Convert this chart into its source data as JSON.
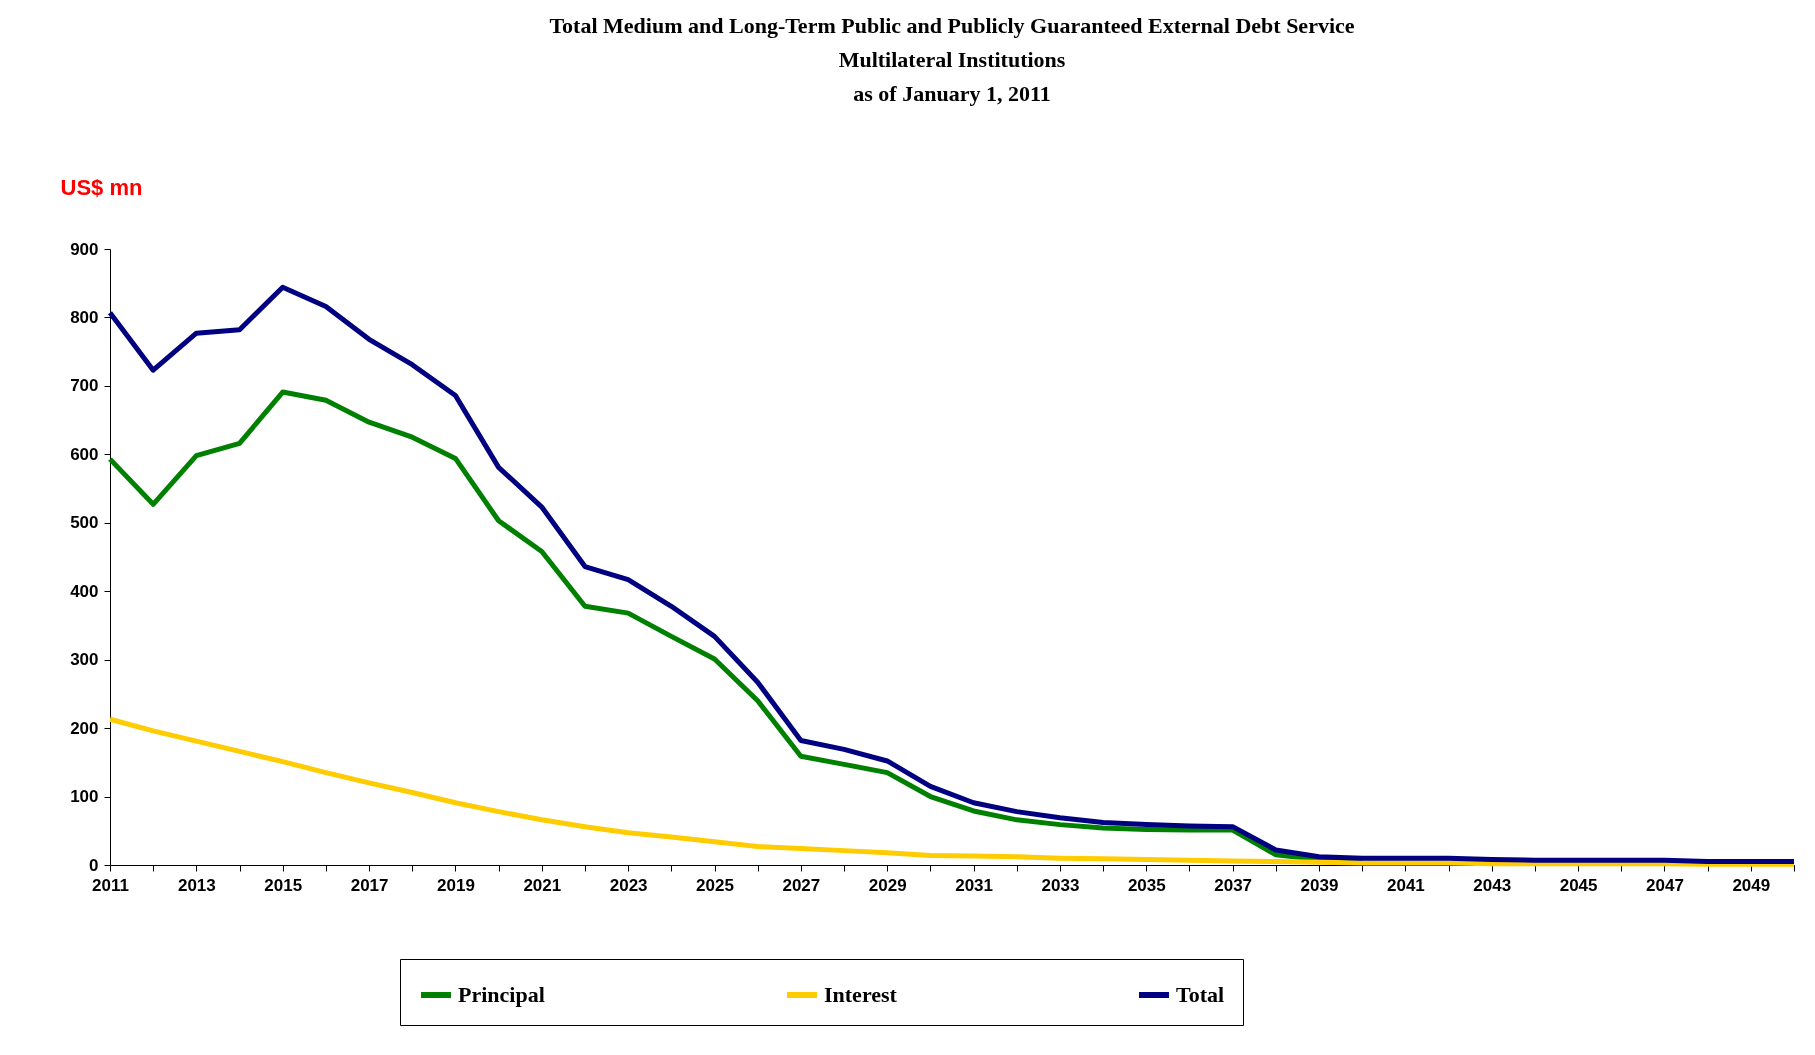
{
  "chart_data": {
    "type": "line",
    "title": "Total Medium and Long-Term Public and Publicly Guaranteed External Debt Service\nMultilateral Institutions\nas of January 1, 2011",
    "ylabel": "US$ mn",
    "categories": [
      "2011",
      null,
      "2013",
      null,
      "2015",
      null,
      "2017",
      null,
      "2019",
      null,
      "2021",
      null,
      "2023",
      null,
      "2025",
      null,
      "2027",
      null,
      "2029",
      null,
      "2031",
      null,
      "2033",
      null,
      "2035",
      null,
      "2037",
      null,
      "2039",
      null,
      "2041",
      null,
      "2043",
      null,
      "2045",
      null,
      "2047",
      null,
      "2049",
      null
    ],
    "series": [
      {
        "name": "Principal",
        "color": "#008000",
        "values": [
          593,
          527,
          598,
          616,
          691,
          679,
          647,
          625,
          594,
          503,
          458,
          378,
          368,
          334,
          301,
          240,
          159,
          147,
          135,
          100,
          79,
          66,
          59,
          54,
          52,
          51,
          51,
          15,
          8,
          7,
          null,
          null,
          null,
          null,
          null,
          null,
          null,
          null,
          null,
          null
        ]
      },
      {
        "name": "Interest",
        "color": "#ffcc00",
        "values": [
          213,
          196,
          181,
          166,
          151,
          135,
          120,
          106,
          91,
          78,
          66,
          56,
          47,
          41,
          34,
          27,
          24,
          21,
          18,
          14,
          13,
          12,
          10,
          9,
          8,
          7,
          6,
          5,
          4,
          3,
          3,
          3,
          2,
          2,
          2,
          2,
          2,
          1,
          1,
          1
        ]
      },
      {
        "name": "Total",
        "color": "#000080",
        "values": [
          807,
          723,
          777,
          782,
          844,
          816,
          768,
          731,
          686,
          581,
          523,
          436,
          417,
          378,
          334,
          267,
          182,
          169,
          152,
          115,
          91,
          78,
          69,
          62,
          59,
          57,
          56,
          22,
          12,
          10,
          10,
          10,
          8,
          7,
          7,
          7,
          7,
          5,
          5,
          5
        ]
      }
    ],
    "ylim": [
      0,
      900
    ],
    "yticks": [
      0,
      100,
      200,
      300,
      400,
      500,
      600,
      700,
      800,
      900
    ],
    "legend": "bottom"
  }
}
